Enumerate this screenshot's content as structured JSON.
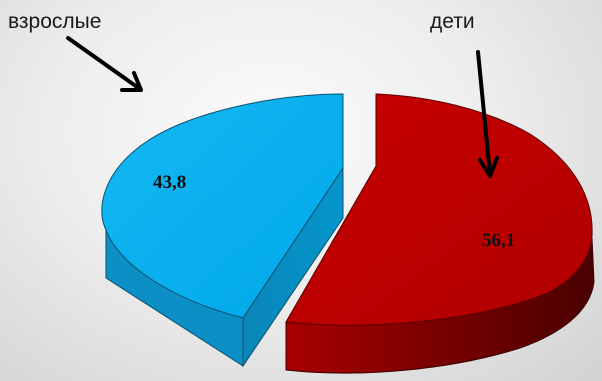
{
  "chart_data": {
    "type": "pie",
    "title": "",
    "categories": [
      "взрослые",
      "дети"
    ],
    "values": [
      43.8,
      56.1
    ],
    "value_labels": [
      "43,8",
      "56,1"
    ],
    "colors": {
      "взрослые": "#00b0f0",
      "дети": "#c00000"
    },
    "exploded": true,
    "style": "3d",
    "legend": "none"
  }
}
